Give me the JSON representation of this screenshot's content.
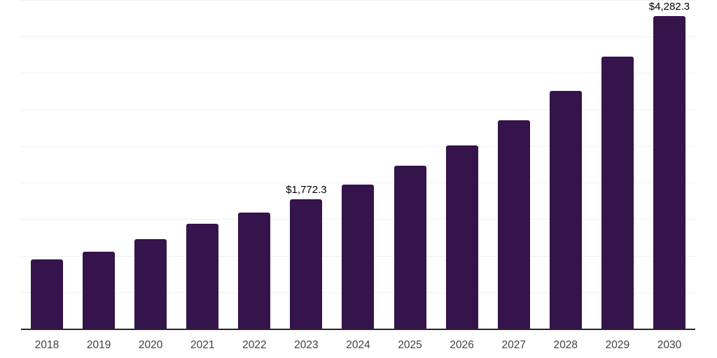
{
  "chart_data": {
    "type": "bar",
    "title": "",
    "xlabel": "",
    "ylabel": "",
    "categories": [
      "2018",
      "2019",
      "2020",
      "2021",
      "2022",
      "2023",
      "2024",
      "2025",
      "2026",
      "2027",
      "2028",
      "2029",
      "2030"
    ],
    "values": [
      950,
      1055,
      1225,
      1435,
      1590,
      1772.3,
      1975,
      2230,
      2505,
      2850,
      3255,
      3720,
      4282.3
    ],
    "data_labels": [
      null,
      null,
      null,
      null,
      null,
      "$1,772.3",
      null,
      null,
      null,
      null,
      null,
      null,
      "$4,282.3"
    ],
    "ylim": [
      0,
      4500
    ],
    "gridline_step": 500,
    "grid": "horizontal",
    "legend": "none",
    "y_tick_labels_visible": false,
    "colors": {
      "bar": "#35134b",
      "gridline": "#f0f0f0",
      "axis": "#262626",
      "tick_label": "#404040",
      "data_label": "#000000",
      "background": "#ffffff"
    }
  }
}
